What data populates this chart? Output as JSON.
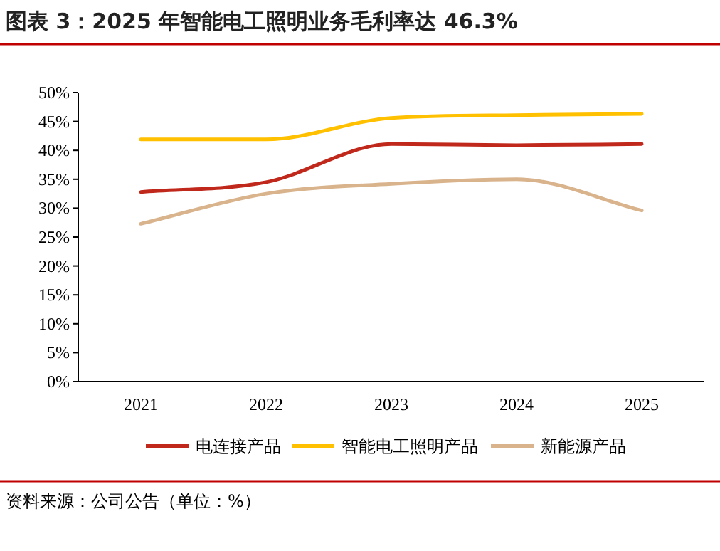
{
  "chart_data": {
    "type": "line",
    "title": "图表 3：2025 年智能电工照明业务毛利率达 46.3%",
    "categories": [
      "2021",
      "2022",
      "2023",
      "2024",
      "2025"
    ],
    "series": [
      {
        "name": "电连接产品",
        "color": "#c0281b",
        "values": [
          32.8,
          34.5,
          41.1,
          40.9,
          41.1
        ]
      },
      {
        "name": "智能电工照明产品",
        "color": "#ffc000",
        "values": [
          41.9,
          41.9,
          45.6,
          46.1,
          46.3
        ]
      },
      {
        "name": "新能源产品",
        "color": "#d9b38c",
        "values": [
          27.3,
          32.5,
          34.2,
          35.0,
          29.6
        ]
      }
    ],
    "ylim": [
      0,
      50
    ],
    "yticks": [
      {
        "value": 0,
        "label": "0%"
      },
      {
        "value": 5,
        "label": "5%"
      },
      {
        "value": 10,
        "label": "10%"
      },
      {
        "value": 15,
        "label": "15%"
      },
      {
        "value": 20,
        "label": "20%"
      },
      {
        "value": 25,
        "label": "25%"
      },
      {
        "value": 30,
        "label": "30%"
      },
      {
        "value": 35,
        "label": "35%"
      },
      {
        "value": 40,
        "label": "40%"
      },
      {
        "value": 45,
        "label": "45%"
      },
      {
        "value": 50,
        "label": "50%"
      }
    ],
    "legend": "bottom",
    "line_style": "solid",
    "marker": "none",
    "grid": false,
    "annotations": [
      "资料来源：公司公告（单位：%）"
    ]
  }
}
